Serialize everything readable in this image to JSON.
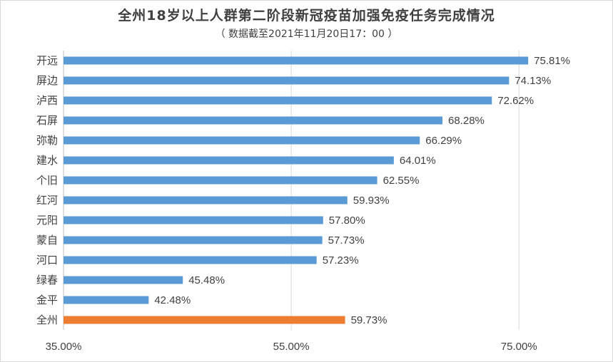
{
  "chart_data": {
    "type": "bar",
    "orientation": "horizontal",
    "title": "全州18岁以上人群第二阶段新冠疫苗加强免疫任务完成情况",
    "subtitle": "（ 数据截至2021年11月20日17：00 ）",
    "categories": [
      "开远",
      "屏边",
      "泸西",
      "石屏",
      "弥勒",
      "建水",
      "个旧",
      "红河",
      "元阳",
      "蒙自",
      "河口",
      "绿春",
      "金平",
      "全州"
    ],
    "values": [
      75.81,
      74.13,
      72.62,
      68.28,
      66.29,
      64.01,
      62.55,
      59.93,
      57.8,
      57.73,
      57.23,
      45.48,
      42.48,
      59.73
    ],
    "value_labels": [
      "75.81%",
      "74.13%",
      "72.62%",
      "68.28%",
      "66.29%",
      "64.01%",
      "62.55%",
      "59.93%",
      "57.80%",
      "57.73%",
      "57.23%",
      "45.48%",
      "42.48%",
      "59.73%"
    ],
    "highlight_category": "全州",
    "xlim": [
      35,
      80
    ],
    "xticks": [
      35,
      55,
      75
    ],
    "xtick_labels": [
      "35.00%",
      "55.00%",
      "75.00%"
    ],
    "grid": "vertical",
    "legend": "none",
    "colors": {
      "bar": "#5b9bd5",
      "highlight": "#ed7d31",
      "grid": "#d9d9d9",
      "axis": "#bfbfbf"
    }
  }
}
